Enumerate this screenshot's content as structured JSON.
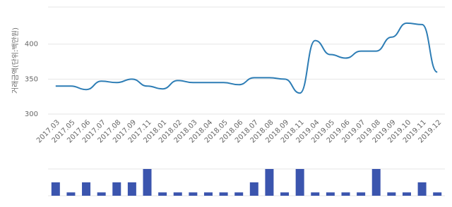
{
  "chart_data": [
    {
      "type": "line",
      "y_label": "거래금액(단위:백만원)",
      "categories": [
        "2017.03",
        "2017.05",
        "2017.06",
        "2017.07",
        "2017.08",
        "2017.09",
        "2017.11",
        "2018.01",
        "2018.02",
        "2018.03",
        "2018.04",
        "2018.05",
        "2018.06",
        "2018.07",
        "2018.08",
        "2018.09",
        "2018.11",
        "2019.04",
        "2019.05",
        "2019.06",
        "2019.07",
        "2019.08",
        "2019.09",
        "2019.10",
        "2019.11",
        "2019.12"
      ],
      "values": [
        340,
        340,
        335,
        347,
        345,
        350,
        340,
        336,
        348,
        345,
        345,
        345,
        342,
        352,
        352,
        350,
        330,
        405,
        385,
        380,
        390,
        390,
        410,
        430,
        428,
        360
      ],
      "color": "#2d7db5",
      "ylim": [
        300,
        453
      ],
      "yticks": [
        300,
        350,
        400
      ],
      "grid": true
    },
    {
      "type": "bar",
      "values": [
        4,
        1,
        4,
        1,
        4,
        4,
        8,
        1,
        1,
        1,
        1,
        1,
        1,
        4,
        8,
        1,
        8,
        1,
        1,
        1,
        1,
        8,
        1,
        1,
        4,
        1
      ],
      "color": "#3b55ae",
      "ylim": [
        0,
        8
      ]
    }
  ]
}
